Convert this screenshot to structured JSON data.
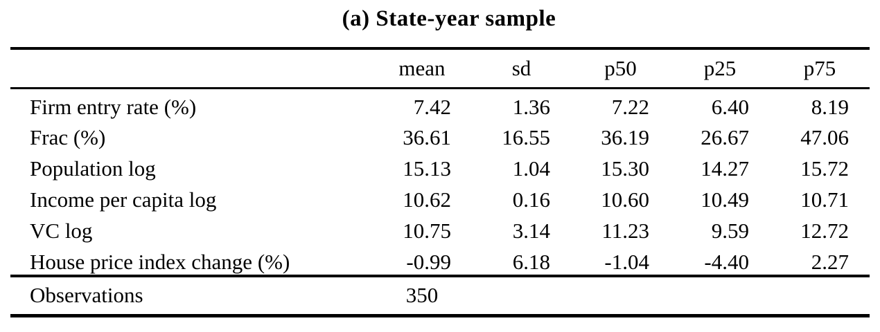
{
  "title": "(a) State-year sample",
  "table": {
    "columns": [
      "mean",
      "sd",
      "p50",
      "p25",
      "p75"
    ],
    "rows": [
      {
        "label": "Firm entry rate (%)",
        "values": [
          "7.42",
          "1.36",
          "7.22",
          "6.40",
          "8.19"
        ]
      },
      {
        "label": "Frac (%)",
        "values": [
          "36.61",
          "16.55",
          "36.19",
          "26.67",
          "47.06"
        ]
      },
      {
        "label": "Population log",
        "values": [
          "15.13",
          "1.04",
          "15.30",
          "14.27",
          "15.72"
        ]
      },
      {
        "label": "Income per capita log",
        "values": [
          "10.62",
          "0.16",
          "10.60",
          "10.49",
          "10.71"
        ]
      },
      {
        "label": "VC log",
        "values": [
          "10.75",
          "3.14",
          "11.23",
          "9.59",
          "12.72"
        ]
      },
      {
        "label": "House price index change (%)",
        "values": [
          "-0.99",
          "6.18",
          "-1.04",
          "-4.40",
          "2.27"
        ]
      }
    ],
    "footer": {
      "label": "Observations",
      "value": "350"
    }
  },
  "colors": {
    "text": "#000000",
    "background": "#ffffff",
    "rule": "#000000"
  }
}
